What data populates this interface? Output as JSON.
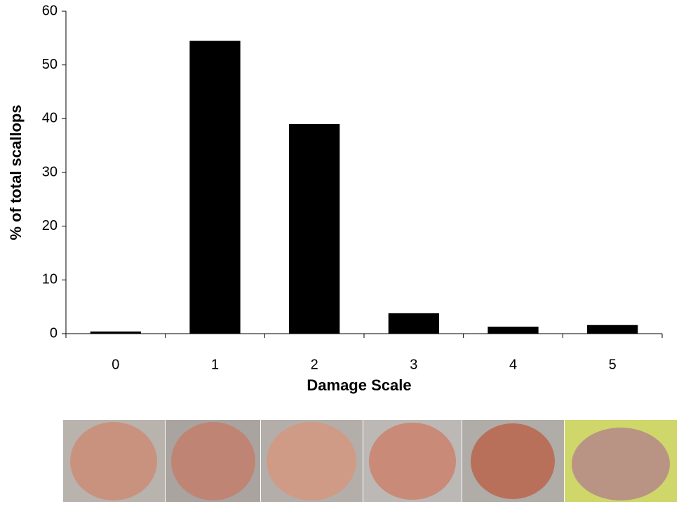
{
  "chart_data": {
    "type": "bar",
    "x_label": "Damage Scale",
    "y_label": "% of total scallops",
    "categories": [
      "0",
      "1",
      "2",
      "3",
      "4",
      "5"
    ],
    "values": [
      0.4,
      54.5,
      39,
      3.8,
      1.3,
      1.6
    ],
    "color": "#000000",
    "ylim": [
      0,
      60
    ],
    "yticks": [
      0,
      10,
      20,
      30,
      40,
      50,
      60
    ],
    "grid": false
  }
}
